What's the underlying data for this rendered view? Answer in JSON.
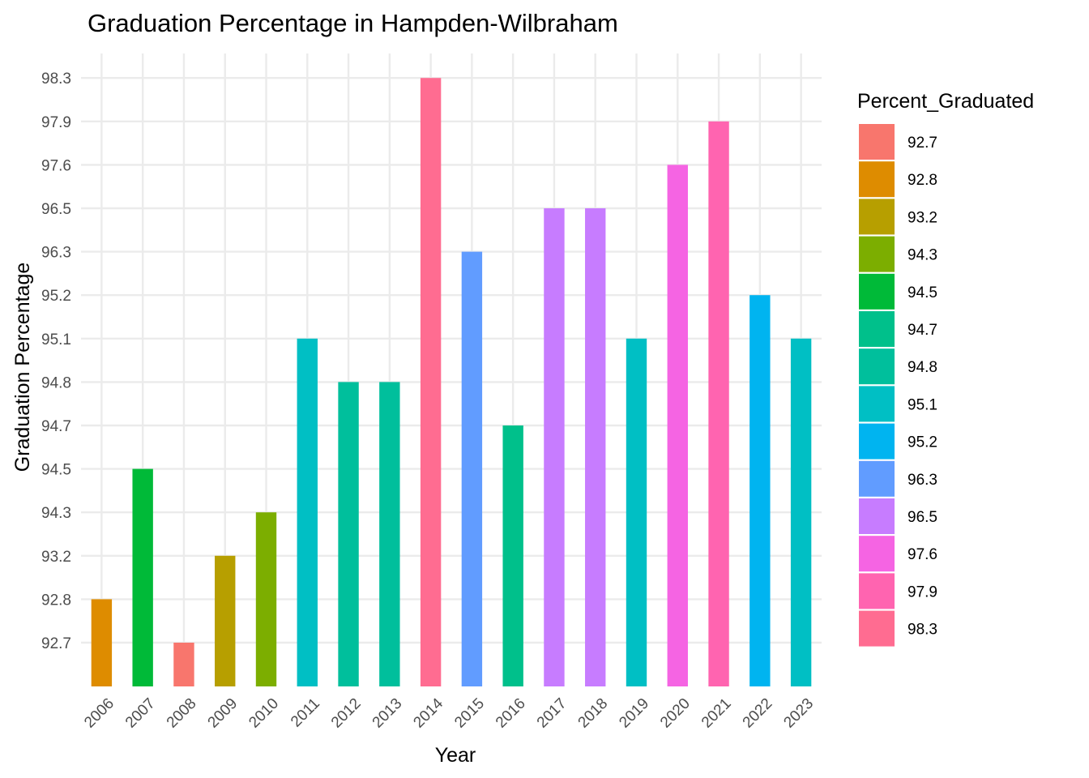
{
  "chart_data": {
    "type": "bar",
    "title": "Graduation Percentage in Hampden-Wilbraham",
    "xlabel": "Year",
    "ylabel": "Graduation Percentage",
    "y_axis_kind": "discrete",
    "categories": [
      "2006",
      "2007",
      "2008",
      "2009",
      "2010",
      "2011",
      "2012",
      "2013",
      "2014",
      "2015",
      "2016",
      "2017",
      "2018",
      "2019",
      "2020",
      "2021",
      "2022",
      "2023"
    ],
    "values": [
      92.8,
      94.5,
      92.7,
      93.2,
      94.3,
      95.1,
      94.8,
      94.8,
      98.3,
      96.3,
      94.7,
      96.5,
      96.5,
      95.1,
      97.6,
      97.9,
      95.2,
      95.1
    ],
    "y_ticks": [
      "92.7",
      "92.8",
      "93.2",
      "94.3",
      "94.5",
      "94.7",
      "94.8",
      "95.1",
      "95.2",
      "96.3",
      "96.5",
      "97.6",
      "97.9",
      "98.3"
    ],
    "x_tick_rotation": -45,
    "grid": true,
    "legend": {
      "title": "Percent_Graduated",
      "placement": "right",
      "entries": [
        {
          "label": "92.7",
          "color": "#F8766D"
        },
        {
          "label": "92.8",
          "color": "#DE8C00"
        },
        {
          "label": "93.2",
          "color": "#B79F00"
        },
        {
          "label": "94.3",
          "color": "#7CAE00"
        },
        {
          "label": "94.5",
          "color": "#00BA38"
        },
        {
          "label": "94.7",
          "color": "#00C08B"
        },
        {
          "label": "94.8",
          "color": "#00BF9C"
        },
        {
          "label": "95.1",
          "color": "#00BFC4"
        },
        {
          "label": "95.2",
          "color": "#00B4F0"
        },
        {
          "label": "96.3",
          "color": "#619CFF"
        },
        {
          "label": "96.5",
          "color": "#C77CFF"
        },
        {
          "label": "97.6",
          "color": "#F564E3"
        },
        {
          "label": "97.9",
          "color": "#FF64B0"
        },
        {
          "label": "98.3",
          "color": "#FF6C91"
        }
      ]
    }
  }
}
